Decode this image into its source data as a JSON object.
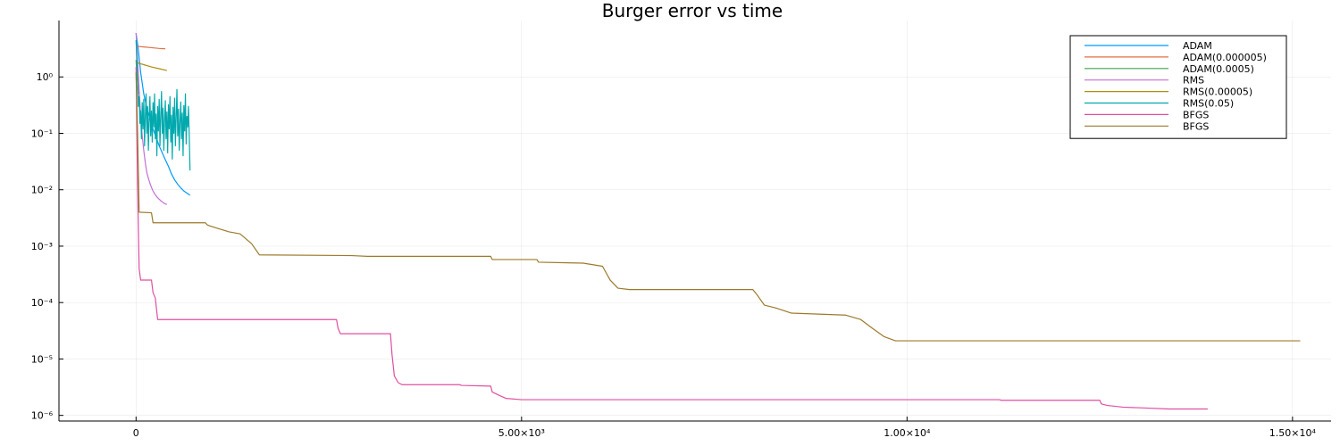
{
  "chart_data": {
    "type": "line",
    "title": "Burger error vs time",
    "xlabel": "",
    "ylabel": "",
    "xlim": [
      -1000,
      15500
    ],
    "ylim_log10": [
      -6.1,
      1.0
    ],
    "y_scale": "log10",
    "grid": true,
    "legend_position": "top-right",
    "x_ticks": [
      {
        "value": 0,
        "label": "0"
      },
      {
        "value": 5000,
        "label": "5.00×10³"
      },
      {
        "value": 10000,
        "label": "1.00×10⁴"
      },
      {
        "value": 15000,
        "label": "1.50×10⁴"
      }
    ],
    "y_ticks": [
      {
        "exp": 0,
        "label": "10⁰"
      },
      {
        "exp": -1,
        "label": "10⁻¹"
      },
      {
        "exp": -2,
        "label": "10⁻²"
      },
      {
        "exp": -3,
        "label": "10⁻³"
      },
      {
        "exp": -4,
        "label": "10⁻⁴"
      },
      {
        "exp": -5,
        "label": "10⁻⁵"
      },
      {
        "exp": -6,
        "label": "10⁻⁶"
      }
    ],
    "series": [
      {
        "name": "ADAM",
        "color": "#009AFA",
        "points": [
          [
            0,
            6.0
          ],
          [
            30,
            3.0
          ],
          [
            60,
            1.2
          ],
          [
            100,
            0.5
          ],
          [
            140,
            0.28
          ],
          [
            180,
            0.18
          ],
          [
            220,
            0.12
          ],
          [
            260,
            0.085
          ],
          [
            300,
            0.06
          ],
          [
            340,
            0.045
          ],
          [
            380,
            0.034
          ],
          [
            420,
            0.026
          ],
          [
            460,
            0.019
          ],
          [
            500,
            0.015
          ],
          [
            540,
            0.0125
          ],
          [
            580,
            0.0108
          ],
          [
            620,
            0.0095
          ],
          [
            660,
            0.0087
          ],
          [
            700,
            0.008
          ]
        ]
      },
      {
        "name": "ADAM(0.000005)",
        "color": "#E26F46",
        "points": [
          [
            0,
            3.5
          ],
          [
            100,
            3.4
          ],
          [
            200,
            3.3
          ],
          [
            300,
            3.2
          ],
          [
            380,
            3.15
          ]
        ]
      },
      {
        "name": "ADAM(0.0005)",
        "color": "#3DA44D",
        "points": [
          [
            0,
            2.0
          ],
          [
            5,
            1.5
          ],
          [
            15,
            0.9
          ],
          [
            30,
            0.5
          ]
        ]
      },
      {
        "name": "RMS",
        "color": "#C271D2",
        "points": [
          [
            0,
            6.0
          ],
          [
            20,
            2.0
          ],
          [
            40,
            0.6
          ],
          [
            60,
            0.2
          ],
          [
            80,
            0.09
          ],
          [
            100,
            0.05
          ],
          [
            120,
            0.03
          ],
          [
            140,
            0.02
          ],
          [
            160,
            0.016
          ],
          [
            180,
            0.013
          ],
          [
            200,
            0.011
          ],
          [
            220,
            0.0095
          ],
          [
            240,
            0.0085
          ],
          [
            260,
            0.0078
          ],
          [
            280,
            0.0072
          ],
          [
            300,
            0.0068
          ],
          [
            320,
            0.0064
          ],
          [
            340,
            0.0061
          ],
          [
            360,
            0.0058
          ],
          [
            380,
            0.0056
          ],
          [
            400,
            0.0055
          ]
        ]
      },
      {
        "name": "RMS(0.00005)",
        "color": "#AC8E18",
        "points": [
          [
            0,
            1.8
          ],
          [
            100,
            1.65
          ],
          [
            200,
            1.5
          ],
          [
            300,
            1.4
          ],
          [
            400,
            1.3
          ]
        ]
      },
      {
        "name": "RMS(0.05)",
        "color": "#00A9AD",
        "points": [
          [
            0,
            4.5
          ],
          [
            10,
            2.0
          ],
          [
            20,
            0.8
          ],
          [
            30,
            0.3
          ],
          [
            40,
            0.45
          ],
          [
            50,
            0.15
          ],
          [
            60,
            0.25
          ],
          [
            70,
            0.08
          ],
          [
            80,
            0.35
          ],
          [
            90,
            0.12
          ],
          [
            100,
            0.4
          ],
          [
            110,
            0.06
          ],
          [
            120,
            0.2
          ],
          [
            130,
            0.5
          ],
          [
            140,
            0.1
          ],
          [
            150,
            0.3
          ],
          [
            160,
            0.05
          ],
          [
            170,
            0.18
          ],
          [
            180,
            0.45
          ],
          [
            190,
            0.09
          ],
          [
            200,
            0.25
          ],
          [
            210,
            0.07
          ],
          [
            220,
            0.35
          ],
          [
            230,
            0.13
          ],
          [
            240,
            0.5
          ],
          [
            250,
            0.08
          ],
          [
            260,
            0.22
          ],
          [
            270,
            0.04
          ],
          [
            280,
            0.3
          ],
          [
            290,
            0.11
          ],
          [
            300,
            0.4
          ],
          [
            310,
            0.06
          ],
          [
            320,
            0.2
          ],
          [
            330,
            0.55
          ],
          [
            340,
            0.1
          ],
          [
            350,
            0.28
          ],
          [
            360,
            0.05
          ],
          [
            370,
            0.17
          ],
          [
            380,
            0.38
          ],
          [
            390,
            0.08
          ],
          [
            400,
            0.24
          ],
          [
            410,
            0.045
          ],
          [
            420,
            0.32
          ],
          [
            430,
            0.12
          ],
          [
            440,
            0.45
          ],
          [
            450,
            0.07
          ],
          [
            460,
            0.21
          ],
          [
            470,
            0.035
          ],
          [
            480,
            0.29
          ],
          [
            490,
            0.1
          ],
          [
            500,
            0.42
          ],
          [
            510,
            0.06
          ],
          [
            520,
            0.19
          ],
          [
            530,
            0.6
          ],
          [
            540,
            0.09
          ],
          [
            550,
            0.27
          ],
          [
            560,
            0.05
          ],
          [
            570,
            0.16
          ],
          [
            580,
            0.36
          ],
          [
            590,
            0.08
          ],
          [
            600,
            0.23
          ],
          [
            610,
            0.04
          ],
          [
            620,
            0.31
          ],
          [
            630,
            0.11
          ],
          [
            640,
            0.5
          ],
          [
            650,
            0.065
          ],
          [
            660,
            0.2
          ],
          [
            670,
            0.13
          ],
          [
            680,
            0.3
          ],
          [
            690,
            0.09
          ],
          [
            700,
            0.022
          ]
        ]
      },
      {
        "name": "BFGS",
        "color": "#E04FA0",
        "points": [
          [
            0,
            1.5
          ],
          [
            20,
            0.01
          ],
          [
            40,
            0.0004
          ],
          [
            60,
            0.00025
          ],
          [
            200,
            0.00025
          ],
          [
            220,
            0.00015
          ],
          [
            250,
            0.00012
          ],
          [
            280,
            5e-05
          ],
          [
            2600,
            5e-05
          ],
          [
            2620,
            3.5e-05
          ],
          [
            2650,
            2.8e-05
          ],
          [
            3300,
            2.8e-05
          ],
          [
            3320,
            1.2e-05
          ],
          [
            3350,
            5e-06
          ],
          [
            3400,
            3.8e-06
          ],
          [
            3450,
            3.5e-06
          ],
          [
            4200,
            3.5e-06
          ],
          [
            4220,
            3.4e-06
          ],
          [
            4600,
            3.3e-06
          ],
          [
            4620,
            2.6e-06
          ],
          [
            4700,
            2.3e-06
          ],
          [
            4800,
            2e-06
          ],
          [
            5000,
            1.9e-06
          ],
          [
            11200,
            1.9e-06
          ],
          [
            11220,
            1.85e-06
          ],
          [
            12500,
            1.85e-06
          ],
          [
            12520,
            1.6e-06
          ],
          [
            12600,
            1.5e-06
          ],
          [
            12800,
            1.4e-06
          ],
          [
            13100,
            1.35e-06
          ],
          [
            13400,
            1.3e-06
          ],
          [
            13900,
            1.3e-06
          ]
        ]
      },
      {
        "name": "BFGS",
        "color": "#9C7A2B",
        "points": [
          [
            0,
            1.2
          ],
          [
            20,
            0.1
          ],
          [
            40,
            0.004
          ],
          [
            200,
            0.0039
          ],
          [
            220,
            0.0026
          ],
          [
            900,
            0.0026
          ],
          [
            920,
            0.0024
          ],
          [
            950,
            0.0023
          ],
          [
            1200,
            0.0018
          ],
          [
            1350,
            0.00165
          ],
          [
            1500,
            0.0011
          ],
          [
            1600,
            0.0007
          ],
          [
            2800,
            0.00068
          ],
          [
            3000,
            0.00066
          ],
          [
            4600,
            0.00066
          ],
          [
            4620,
            0.00058
          ],
          [
            5200,
            0.00058
          ],
          [
            5220,
            0.00052
          ],
          [
            5800,
            0.0005
          ],
          [
            6050,
            0.00044
          ],
          [
            6150,
            0.00025
          ],
          [
            6250,
            0.00018
          ],
          [
            6400,
            0.00017
          ],
          [
            8000,
            0.00017
          ],
          [
            8050,
            0.00014
          ],
          [
            8150,
            9e-05
          ],
          [
            8300,
            8e-05
          ],
          [
            8500,
            6.5e-05
          ],
          [
            9200,
            6e-05
          ],
          [
            9400,
            5e-05
          ],
          [
            9550,
            3.5e-05
          ],
          [
            9700,
            2.5e-05
          ],
          [
            9850,
            2.1e-05
          ],
          [
            15100,
            2.1e-05
          ]
        ]
      }
    ]
  }
}
